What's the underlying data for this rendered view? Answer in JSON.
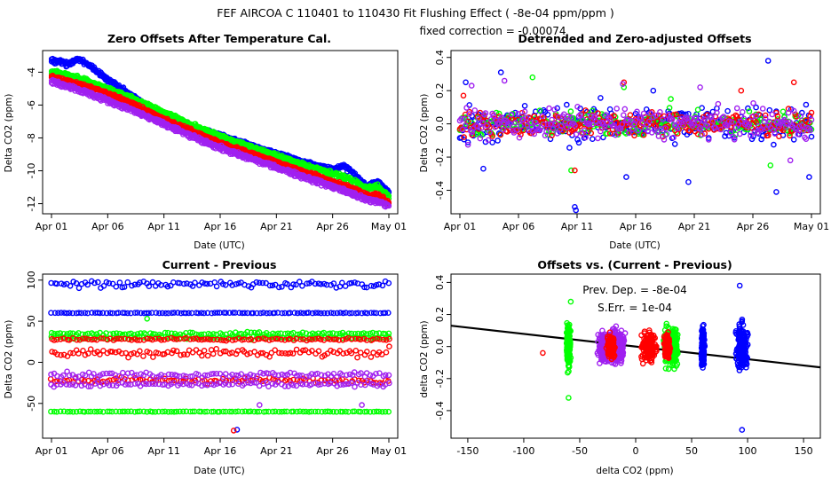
{
  "suptitle": "FEF   AIRCOA C   110401 to 110430   Fit Flushing Effect ( -8e-04 ppm/ppm )",
  "subtitle": "fixed correction = -0.00074",
  "colors": {
    "blue": "#0000ff",
    "green": "#00ff00",
    "red": "#ff0000",
    "purple": "#a020f0",
    "line": "#000000"
  },
  "chart_data": [
    {
      "id": "p1",
      "type": "scatter",
      "title": "Zero Offsets After Temperature Cal.",
      "xlabel": "Date (UTC)",
      "ylabel": "Delta CO2 (ppm)",
      "xlim": [
        0,
        30
      ],
      "ylim": [
        -12.4,
        -2.9
      ],
      "xticks": [
        {
          "v": 0,
          "label": "Apr 01"
        },
        {
          "v": 5,
          "label": "Apr 06"
        },
        {
          "v": 10,
          "label": "Apr 11"
        },
        {
          "v": 15,
          "label": "Apr 16"
        },
        {
          "v": 20,
          "label": "Apr 21"
        },
        {
          "v": 25,
          "label": "Apr 26"
        },
        {
          "v": 30,
          "label": "May 01"
        }
      ],
      "yticks": [
        {
          "v": -4,
          "label": "-4"
        },
        {
          "v": -6,
          "label": "-6"
        },
        {
          "v": -8,
          "label": "-8"
        },
        {
          "v": -10,
          "label": "-10"
        },
        {
          "v": -12,
          "label": "-12"
        }
      ],
      "series": [
        {
          "name": "blue",
          "color": "blue",
          "x": [
            0,
            1.5,
            2.5,
            3.5,
            5,
            7,
            10,
            13,
            16,
            19,
            22,
            25,
            26,
            27,
            28,
            29,
            30
          ],
          "y": [
            -3.2,
            -3.4,
            -3.15,
            -3.6,
            -4.4,
            -5.3,
            -6.6,
            -7.4,
            -8.0,
            -8.7,
            -9.3,
            -9.9,
            -9.6,
            -10.2,
            -10.9,
            -10.6,
            -11.3
          ]
        },
        {
          "name": "green",
          "color": "green",
          "x": [
            0,
            2,
            4,
            7,
            10,
            13,
            16,
            19,
            22,
            25,
            27,
            28,
            29,
            30
          ],
          "y": [
            -3.9,
            -4.2,
            -4.7,
            -5.5,
            -6.4,
            -7.3,
            -8.1,
            -8.8,
            -9.5,
            -10.1,
            -10.6,
            -11.0,
            -10.9,
            -11.5
          ]
        },
        {
          "name": "red",
          "color": "red",
          "x": [
            0,
            2,
            4,
            7,
            10,
            13,
            16,
            19,
            22,
            25,
            27,
            28,
            29,
            30
          ],
          "y": [
            -4.2,
            -4.6,
            -5.0,
            -5.8,
            -6.8,
            -7.7,
            -8.5,
            -9.2,
            -9.9,
            -10.6,
            -11.1,
            -11.4,
            -11.4,
            -11.9
          ]
        },
        {
          "name": "purple",
          "color": "purple",
          "x": [
            0,
            2,
            4,
            7,
            10,
            13,
            16,
            19,
            22,
            25,
            27,
            28,
            29,
            30
          ],
          "y": [
            -4.5,
            -4.9,
            -5.4,
            -6.2,
            -7.1,
            -8.0,
            -8.8,
            -9.5,
            -10.2,
            -10.9,
            -11.4,
            -11.7,
            -11.8,
            -12.1
          ]
        }
      ]
    },
    {
      "id": "p2",
      "type": "scatter",
      "title": "Detrended and Zero-adjusted Offsets",
      "xlabel": "Date (UTC)",
      "ylabel": "Delta CO2 (ppm)",
      "xlim": [
        0,
        30
      ],
      "ylim": [
        -0.52,
        0.42
      ],
      "xticks": [
        {
          "v": 0,
          "label": "Apr 01"
        },
        {
          "v": 5,
          "label": "Apr 06"
        },
        {
          "v": 10,
          "label": "Apr 11"
        },
        {
          "v": 15,
          "label": "Apr 16"
        },
        {
          "v": 20,
          "label": "Apr 21"
        },
        {
          "v": 25,
          "label": "Apr 26"
        },
        {
          "v": 30,
          "label": "May 01"
        }
      ],
      "yticks": [
        {
          "v": 0.4,
          "label": "0.4"
        },
        {
          "v": 0.2,
          "label": "0.2"
        },
        {
          "v": 0.0,
          "label": "0.0"
        },
        {
          "v": -0.2,
          "label": "-0.2"
        },
        {
          "v": -0.4,
          "label": "-0.4"
        }
      ],
      "series": [
        {
          "name": "blue",
          "color": "blue",
          "spread": 0.11,
          "x": [
            0.5,
            2,
            3.5,
            9.8,
            9.9,
            14.2,
            16.5,
            19.5,
            26.3,
            27.0,
            29.8
          ],
          "y": [
            0.25,
            -0.27,
            0.31,
            -0.5,
            -0.52,
            -0.32,
            0.2,
            -0.35,
            0.38,
            -0.41,
            -0.32
          ]
        },
        {
          "name": "green",
          "color": "green",
          "spread": 0.07,
          "x": [
            6.2,
            9.5,
            14.0,
            18.0,
            26.5
          ],
          "y": [
            0.28,
            -0.28,
            0.22,
            0.15,
            -0.25
          ]
        },
        {
          "name": "red",
          "color": "red",
          "spread": 0.07,
          "x": [
            0.3,
            9.8,
            14.0,
            24.0,
            28.5
          ],
          "y": [
            0.17,
            -0.28,
            0.25,
            0.2,
            0.25
          ]
        },
        {
          "name": "purple",
          "color": "purple",
          "spread": 0.08,
          "x": [
            1.0,
            3.8,
            13.9,
            20.5,
            28.2
          ],
          "y": [
            0.23,
            0.26,
            0.24,
            0.22,
            -0.22
          ]
        }
      ]
    },
    {
      "id": "p3",
      "type": "scatter",
      "title": "Current - Previous",
      "xlabel": "Date (UTC)",
      "ylabel": "Delta CO2 (ppm)",
      "xlim": [
        0,
        30
      ],
      "ylim": [
        -88,
        103
      ],
      "xticks": [
        {
          "v": 0,
          "label": "Apr 01"
        },
        {
          "v": 5,
          "label": "Apr 06"
        },
        {
          "v": 10,
          "label": "Apr 11"
        },
        {
          "v": 15,
          "label": "Apr 16"
        },
        {
          "v": 20,
          "label": "Apr 21"
        },
        {
          "v": 25,
          "label": "Apr 26"
        },
        {
          "v": 30,
          "label": "May 01"
        }
      ],
      "yticks": [
        {
          "v": 100,
          "label": "100"
        },
        {
          "v": 50,
          "label": "50"
        },
        {
          "v": 0,
          "label": "0"
        },
        {
          "v": -50,
          "label": "-50"
        }
      ],
      "series": [
        {
          "name": "blue",
          "color": "blue",
          "bands": [
            {
              "y": 95,
              "spread": 4
            },
            {
              "y": 60,
              "spread": 0.6
            }
          ],
          "outliers_x": [
            16.5
          ],
          "outliers_y": [
            -82
          ]
        },
        {
          "name": "green",
          "color": "green",
          "bands": [
            {
              "y": 35,
              "spread": 2
            },
            {
              "y": 30,
              "spread": 2
            },
            {
              "y": -60,
              "spread": 0.6
            }
          ],
          "outliers_x": [
            8.5
          ],
          "outliers_y": [
            53
          ]
        },
        {
          "name": "red",
          "color": "red",
          "bands": [
            {
              "y": 28,
              "spread": 1.5
            },
            {
              "y": 12,
              "spread": 5
            },
            {
              "y": -22,
              "spread": 3
            }
          ],
          "outliers_x": [
            16.2
          ],
          "outliers_y": [
            -83
          ]
        },
        {
          "name": "purple",
          "color": "purple",
          "bands": [
            {
              "y": -15,
              "spread": 3
            },
            {
              "y": -27,
              "spread": 3
            }
          ],
          "outliers_x": [
            18.5,
            27.6
          ],
          "outliers_y": [
            -52,
            -52
          ]
        }
      ]
    },
    {
      "id": "p4",
      "type": "scatter",
      "title": "Offsets vs. (Current - Previous)",
      "xlabel": "delta CO2 (ppm)",
      "ylabel": "delta CO2 (ppm)",
      "xlim": [
        -165,
        165
      ],
      "ylim": [
        -0.55,
        0.43
      ],
      "xticks": [
        {
          "v": -150,
          "label": "-150"
        },
        {
          "v": -100,
          "label": "-100"
        },
        {
          "v": -50,
          "label": "-50"
        },
        {
          "v": 0,
          "label": "0"
        },
        {
          "v": 50,
          "label": "50"
        },
        {
          "v": 100,
          "label": "100"
        },
        {
          "v": 150,
          "label": "150"
        }
      ],
      "yticks": [
        {
          "v": 0.4,
          "label": "0.4"
        },
        {
          "v": 0.2,
          "label": "0.2"
        },
        {
          "v": 0.0,
          "label": "0.0"
        },
        {
          "v": -0.2,
          "label": "-0.2"
        },
        {
          "v": -0.4,
          "label": "-0.4"
        }
      ],
      "annotations": [
        {
          "text": "Prev. Dep. =  -8e-04"
        },
        {
          "text": "S.Err. =  1e-04"
        }
      ],
      "fit_line": {
        "x": [
          -165,
          165
        ],
        "y": [
          0.13,
          -0.13
        ]
      },
      "series": [
        {
          "name": "green",
          "color": "green",
          "clusters": [
            {
              "x": -60,
              "xs": 1.5,
              "ys": 0.12
            },
            {
              "x": 30,
              "xs": 4,
              "ys": 0.1
            },
            {
              "x": 35,
              "xs": 2,
              "ys": 0.1
            }
          ]
        },
        {
          "name": "purple",
          "color": "purple",
          "clusters": [
            {
              "x": -20,
              "xs": 8,
              "ys": 0.09
            },
            {
              "x": -28,
              "xs": 5,
              "ys": 0.08
            },
            {
              "x": -15,
              "xs": 4,
              "ys": 0.08
            }
          ]
        },
        {
          "name": "red",
          "color": "red",
          "clusters": [
            {
              "x": 12,
              "xs": 6,
              "ys": 0.08
            },
            {
              "x": 28,
              "xs": 2,
              "ys": 0.07
            },
            {
              "x": -22,
              "xs": 3,
              "ys": 0.06
            }
          ]
        },
        {
          "name": "blue",
          "color": "blue",
          "clusters": [
            {
              "x": 60,
              "xs": 1.2,
              "ys": 0.12
            },
            {
              "x": 95,
              "xs": 5,
              "ys": 0.13
            }
          ]
        }
      ],
      "extra_points": [
        {
          "x": -83,
          "y": -0.04,
          "color": "red"
        },
        {
          "x": -60,
          "y": -0.32,
          "color": "green"
        },
        {
          "x": 95,
          "y": -0.52,
          "color": "blue"
        },
        {
          "x": 93,
          "y": 0.38,
          "color": "blue"
        },
        {
          "x": -58,
          "y": 0.28,
          "color": "green"
        }
      ]
    }
  ]
}
